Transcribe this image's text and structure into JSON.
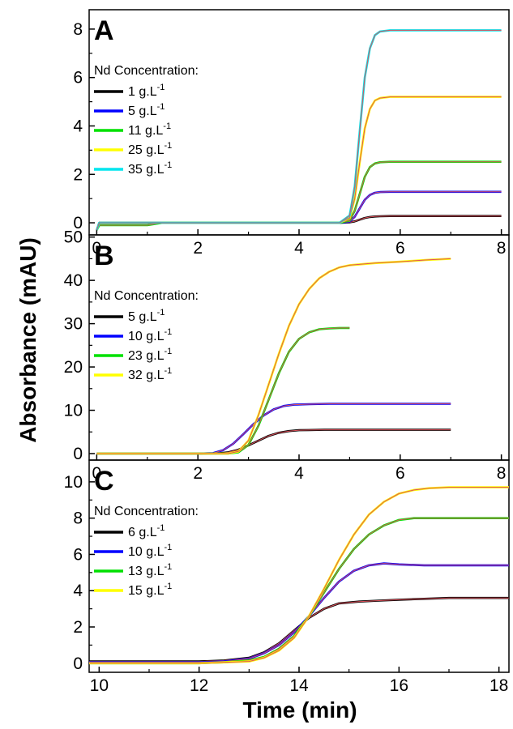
{
  "y_axis_title": "Absorbance (mAU)",
  "x_axis_title": "Time (min)",
  "chart_data": [
    {
      "type": "line",
      "panel": "A",
      "xlim": [
        -0.15,
        8.15
      ],
      "ylim": [
        -0.5,
        8.8
      ],
      "x_ticks": [
        0,
        2,
        4,
        6,
        8
      ],
      "y_ticks": [
        0,
        2,
        4,
        6,
        8
      ],
      "legend_title": "Nd Concentration:",
      "legend_position": "left",
      "series": [
        {
          "name": "1 g.L-1",
          "label_main": "1 g.L",
          "label_sup": "-1",
          "color": "#000000",
          "x": [
            0,
            0.05,
            1.0,
            2.0,
            3.0,
            4.0,
            4.8,
            5.0,
            5.1,
            5.2,
            5.3,
            5.4,
            5.5,
            5.6,
            5.8,
            6.0,
            7.0,
            8.0
          ],
          "y": [
            -0.3,
            0.0,
            0.0,
            0.0,
            0.0,
            0.0,
            0.0,
            0.02,
            0.06,
            0.13,
            0.2,
            0.24,
            0.26,
            0.27,
            0.28,
            0.28,
            0.28,
            0.28
          ]
        },
        {
          "name": "5 g.L-1",
          "label_main": "5 g.L",
          "label_sup": "-1",
          "color": "#0000ff",
          "x": [
            0,
            0.05,
            1.0,
            2.0,
            3.0,
            4.0,
            4.8,
            5.0,
            5.1,
            5.2,
            5.3,
            5.4,
            5.5,
            5.6,
            5.8,
            6.0,
            7.0,
            8.0
          ],
          "y": [
            -0.3,
            0.0,
            0.0,
            0.0,
            0.0,
            0.0,
            0.0,
            0.05,
            0.25,
            0.6,
            0.95,
            1.15,
            1.24,
            1.27,
            1.28,
            1.28,
            1.28,
            1.28
          ]
        },
        {
          "name": "11 g.L-1",
          "label_main": "11 g.L",
          "label_sup": "-1",
          "color": "#00e000",
          "x": [
            0,
            0.05,
            1.0,
            1.3,
            2.0,
            3.0,
            4.0,
            4.8,
            5.0,
            5.1,
            5.2,
            5.3,
            5.4,
            5.5,
            5.6,
            5.8,
            6.0,
            7.0,
            8.0
          ],
          "y": [
            -0.3,
            -0.1,
            -0.1,
            0.0,
            0.0,
            0.0,
            0.0,
            0.0,
            0.1,
            0.5,
            1.2,
            1.9,
            2.3,
            2.45,
            2.5,
            2.52,
            2.52,
            2.52,
            2.52
          ]
        },
        {
          "name": "25 g.L-1",
          "label_main": "25 g.L",
          "label_sup": "-1",
          "color": "#ffff00",
          "x": [
            0,
            0.05,
            1.0,
            2.0,
            3.0,
            4.0,
            4.8,
            5.0,
            5.1,
            5.2,
            5.3,
            5.4,
            5.5,
            5.6,
            5.8,
            6.0,
            7.0,
            8.0
          ],
          "y": [
            -0.3,
            0.0,
            0.0,
            0.0,
            0.0,
            0.0,
            0.0,
            0.2,
            1.0,
            2.5,
            3.9,
            4.7,
            5.05,
            5.15,
            5.2,
            5.2,
            5.2,
            5.2
          ]
        },
        {
          "name": "35 g.L-1",
          "label_main": "35 g.L",
          "label_sup": "-1",
          "color": "#00e5ee",
          "x": [
            0,
            0.05,
            1.0,
            2.0,
            3.0,
            4.0,
            4.8,
            5.0,
            5.1,
            5.2,
            5.3,
            5.4,
            5.5,
            5.6,
            5.8,
            6.0,
            7.0,
            8.0
          ],
          "y": [
            -0.3,
            0.0,
            0.0,
            0.0,
            0.0,
            0.0,
            0.0,
            0.3,
            1.5,
            3.8,
            6.0,
            7.2,
            7.75,
            7.9,
            7.95,
            7.95,
            7.95,
            7.95
          ]
        }
      ]
    },
    {
      "type": "line",
      "panel": "B",
      "xlim": [
        -0.15,
        8.15
      ],
      "ylim": [
        -1.5,
        50.5
      ],
      "x_ticks": [
        0,
        2,
        4,
        6,
        8
      ],
      "y_ticks": [
        0,
        10,
        20,
        30,
        40,
        50
      ],
      "legend_title": "Nd Concentration:",
      "legend_position": "left",
      "series": [
        {
          "name": "5 g.L-1",
          "label_main": "5 g.L",
          "label_sup": "-1",
          "color": "#000000",
          "x": [
            0,
            1.0,
            2.0,
            2.4,
            2.6,
            2.8,
            3.0,
            3.2,
            3.4,
            3.6,
            3.8,
            4.0,
            4.5,
            5.0,
            6.0,
            7.0
          ],
          "y": [
            0,
            0,
            0,
            0.05,
            0.3,
            0.9,
            1.9,
            3.0,
            4.1,
            4.8,
            5.2,
            5.4,
            5.5,
            5.5,
            5.5,
            5.5
          ]
        },
        {
          "name": "10 g.L-1",
          "label_main": "10 g.L",
          "label_sup": "-1",
          "color": "#0000ff",
          "x": [
            0,
            1.0,
            2.0,
            2.3,
            2.5,
            2.7,
            2.9,
            3.1,
            3.3,
            3.5,
            3.7,
            3.9,
            4.2,
            4.6,
            5.0,
            6.0,
            7.0
          ],
          "y": [
            0,
            0,
            0,
            0.1,
            0.8,
            2.3,
            4.5,
            6.8,
            8.8,
            10.2,
            11.0,
            11.3,
            11.4,
            11.5,
            11.5,
            11.5,
            11.5
          ]
        },
        {
          "name": "23 g.L-1",
          "label_main": "23 g.L",
          "label_sup": "-1",
          "color": "#00e000",
          "x": [
            0,
            1.0,
            2.0,
            2.6,
            2.8,
            3.0,
            3.2,
            3.4,
            3.6,
            3.8,
            4.0,
            4.2,
            4.4,
            4.6,
            4.8,
            5.0
          ],
          "y": [
            0,
            0,
            0,
            0,
            0.3,
            2.0,
            6.5,
            12.5,
            18.5,
            23.5,
            26.5,
            28.0,
            28.7,
            28.9,
            29.0,
            29.0
          ]
        },
        {
          "name": "32 g.L-1",
          "label_main": "32 g.L",
          "label_sup": "-1",
          "color": "#ffff00",
          "x": [
            0,
            1.0,
            2.0,
            2.6,
            2.8,
            3.0,
            3.2,
            3.4,
            3.6,
            3.8,
            4.0,
            4.2,
            4.4,
            4.6,
            4.8,
            5.0,
            5.5,
            6.0,
            6.5,
            7.0
          ],
          "y": [
            0,
            0,
            0,
            0,
            0.5,
            3.0,
            9.0,
            16.0,
            23.0,
            29.5,
            34.5,
            38.0,
            40.5,
            42.0,
            43.0,
            43.5,
            44.0,
            44.3,
            44.7,
            45.0
          ]
        }
      ]
    },
    {
      "type": "line",
      "panel": "C",
      "xlim": [
        9.8,
        18.2
      ],
      "ylim": [
        -0.5,
        11.2
      ],
      "x_ticks": [
        10,
        12,
        14,
        16,
        18
      ],
      "y_ticks": [
        0,
        2,
        4,
        6,
        8,
        10
      ],
      "legend_title": "Nd Concentration:",
      "legend_position": "left",
      "series": [
        {
          "name": "6 g.L-1",
          "label_main": "6 g.L",
          "label_sup": "-1",
          "color": "#000000",
          "x": [
            9.8,
            11.0,
            12.0,
            12.5,
            13.0,
            13.3,
            13.6,
            13.9,
            14.2,
            14.5,
            14.8,
            15.2,
            15.6,
            16.0,
            16.5,
            17.0,
            17.5,
            18.2
          ],
          "y": [
            0.1,
            0.1,
            0.1,
            0.15,
            0.3,
            0.6,
            1.1,
            1.8,
            2.5,
            3.0,
            3.3,
            3.4,
            3.45,
            3.5,
            3.55,
            3.6,
            3.6,
            3.6
          ]
        },
        {
          "name": "10 g.L-1",
          "label_main": "10 g.L",
          "label_sup": "-1",
          "color": "#0000ff",
          "x": [
            9.8,
            11.0,
            12.0,
            12.5,
            13.0,
            13.3,
            13.6,
            13.9,
            14.2,
            14.5,
            14.8,
            15.1,
            15.4,
            15.7,
            16.0,
            16.5,
            17.0,
            18.2
          ],
          "y": [
            0.05,
            0.05,
            0.05,
            0.1,
            0.25,
            0.55,
            1.0,
            1.7,
            2.6,
            3.6,
            4.5,
            5.1,
            5.4,
            5.5,
            5.45,
            5.4,
            5.4,
            5.4
          ]
        },
        {
          "name": "13 g.L-1",
          "label_main": "13 g.L",
          "label_sup": "-1",
          "color": "#00e000",
          "x": [
            9.8,
            11.0,
            12.0,
            12.5,
            13.0,
            13.3,
            13.6,
            13.9,
            14.2,
            14.5,
            14.8,
            15.1,
            15.4,
            15.7,
            16.0,
            16.3,
            16.6,
            17.0,
            18.2
          ],
          "y": [
            0.0,
            0.0,
            0.0,
            0.05,
            0.15,
            0.35,
            0.8,
            1.5,
            2.6,
            3.9,
            5.2,
            6.3,
            7.1,
            7.6,
            7.9,
            8.0,
            8.0,
            8.0,
            8.0
          ]
        },
        {
          "name": "15 g.L-1",
          "label_main": "15 g.L",
          "label_sup": "-1",
          "color": "#ffff00",
          "x": [
            9.8,
            11.0,
            12.0,
            12.5,
            13.0,
            13.3,
            13.6,
            13.9,
            14.2,
            14.5,
            14.8,
            15.1,
            15.4,
            15.7,
            16.0,
            16.3,
            16.6,
            17.0,
            18.2
          ],
          "y": [
            0.0,
            0.0,
            0.0,
            0.05,
            0.1,
            0.3,
            0.7,
            1.4,
            2.6,
            4.1,
            5.7,
            7.1,
            8.2,
            8.9,
            9.35,
            9.55,
            9.65,
            9.7,
            9.7
          ]
        }
      ]
    }
  ]
}
